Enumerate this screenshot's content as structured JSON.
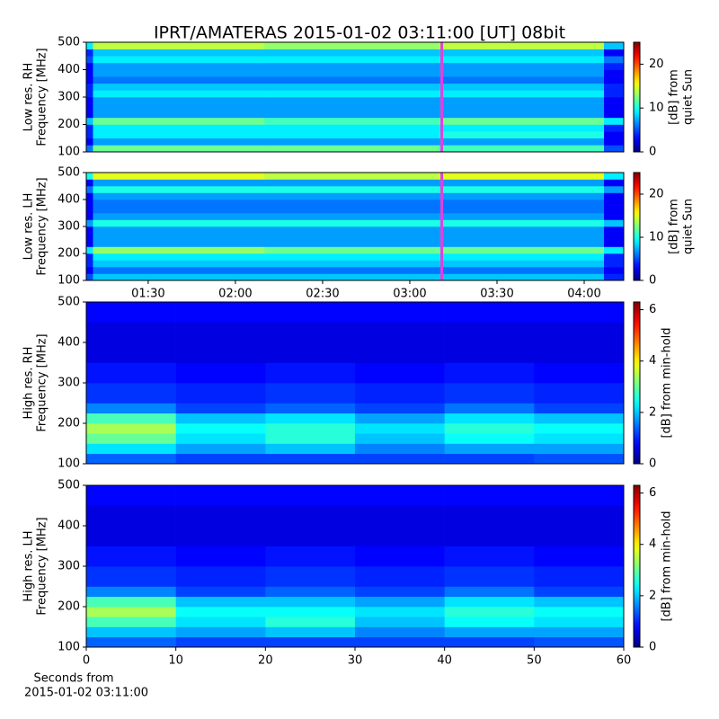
{
  "title": "IPRT/AMATERAS 2015-01-02 03:11:00 [UT]   08bit",
  "chart_data": [
    {
      "type": "heatmap",
      "colormap": "jet",
      "ylabel": [
        "Low res. RH",
        "Frequency [MHz]"
      ],
      "colorbar_label": [
        "[dB] from",
        "quiet Sun"
      ],
      "xlim": [
        68.7,
        253.6
      ],
      "ylim": [
        100,
        500
      ],
      "yticks": [
        100,
        200,
        300,
        400,
        500
      ],
      "zlim": [
        0,
        25
      ],
      "zticks": [
        0,
        10,
        20
      ],
      "x_bins": [
        68.7,
        71,
        130,
        190,
        246.8,
        253.6
      ],
      "y_bins": [
        100,
        125,
        150,
        175,
        200,
        225,
        250,
        275,
        300,
        325,
        350,
        375,
        400,
        425,
        450,
        475,
        500
      ],
      "z": [
        [
          6,
          12,
          12,
          11,
          5
        ],
        [
          3,
          7,
          7,
          7,
          3
        ],
        [
          4,
          9,
          9,
          10,
          3
        ],
        [
          4,
          9,
          9,
          9,
          4
        ],
        [
          8,
          12,
          11,
          12,
          9
        ],
        [
          3,
          7,
          7,
          7,
          3
        ],
        [
          3,
          7,
          7,
          7,
          3
        ],
        [
          3,
          7,
          7,
          7,
          3
        ],
        [
          4,
          9,
          9,
          9,
          4
        ],
        [
          4,
          8,
          8,
          8,
          4
        ],
        [
          3,
          6,
          6,
          6,
          3
        ],
        [
          3,
          7,
          7,
          7,
          3
        ],
        [
          3,
          7,
          7,
          7,
          4
        ],
        [
          5,
          9,
          9,
          9,
          6
        ],
        [
          4,
          8,
          8,
          8,
          3
        ],
        [
          9,
          14,
          13,
          14,
          8
        ]
      ],
      "vline": {
        "x": 191,
        "color": "#e040e0"
      }
    },
    {
      "type": "heatmap",
      "colormap": "jet",
      "ylabel": [
        "Low res. LH",
        "Frequency [MHz]"
      ],
      "colorbar_label": [
        "[dB] from",
        "quiet Sun"
      ],
      "xlim": [
        68.7,
        253.6
      ],
      "ylim": [
        100,
        500
      ],
      "yticks": [
        100,
        200,
        300,
        400,
        500
      ],
      "xticks": [
        {
          "value": 90,
          "label": "01:30"
        },
        {
          "value": 120,
          "label": "02:00"
        },
        {
          "value": 150,
          "label": "02:30"
        },
        {
          "value": 180,
          "label": "03:00"
        },
        {
          "value": 210,
          "label": "03:30"
        },
        {
          "value": 240,
          "label": "04:00"
        }
      ],
      "zlim": [
        0,
        25
      ],
      "zticks": [
        0,
        10,
        20
      ],
      "x_bins": [
        68.7,
        71,
        130,
        190,
        246.8,
        253.6
      ],
      "y_bins": [
        100,
        125,
        150,
        175,
        200,
        225,
        250,
        275,
        300,
        325,
        350,
        375,
        400,
        425,
        450,
        475,
        500
      ],
      "z": [
        [
          5,
          8,
          8,
          8,
          4
        ],
        [
          3,
          6,
          6,
          6,
          3
        ],
        [
          4,
          8,
          8,
          8,
          4
        ],
        [
          4,
          9,
          9,
          9,
          4
        ],
        [
          9,
          13,
          12,
          12,
          9
        ],
        [
          3,
          7,
          7,
          7,
          3
        ],
        [
          3,
          7,
          7,
          7,
          3
        ],
        [
          3,
          7,
          7,
          7,
          3
        ],
        [
          7,
          10,
          10,
          10,
          8
        ],
        [
          3,
          7,
          7,
          7,
          3
        ],
        [
          3,
          6,
          6,
          6,
          3
        ],
        [
          3,
          6,
          6,
          6,
          3
        ],
        [
          3,
          7,
          7,
          7,
          3
        ],
        [
          6,
          10,
          10,
          10,
          7
        ],
        [
          3,
          7,
          7,
          7,
          3
        ],
        [
          10,
          15,
          14,
          15,
          9
        ]
      ],
      "vline": {
        "x": 191,
        "color": "#e040e0"
      }
    },
    {
      "type": "heatmap",
      "colormap": "jet",
      "ylabel": [
        "High res. RH",
        "Frequency [MHz]"
      ],
      "colorbar_label": [
        "[dB] from min-hold"
      ],
      "xlim": [
        0,
        60
      ],
      "ylim": [
        100,
        500
      ],
      "yticks": [
        100,
        200,
        300,
        400,
        500
      ],
      "zlim": [
        0,
        6.3
      ],
      "zticks": [
        0,
        2,
        4,
        6
      ],
      "x_bins": [
        0,
        10,
        20,
        30,
        40,
        50,
        60
      ],
      "y_bins": [
        100,
        125,
        150,
        175,
        200,
        225,
        250,
        300,
        350,
        400,
        450,
        500
      ],
      "z": [
        [
          1.4,
          1.2,
          1.2,
          1.2,
          1.2,
          1.3
        ],
        [
          2.2,
          1.8,
          2.0,
          1.6,
          1.8,
          1.8
        ],
        [
          3.0,
          2.2,
          2.6,
          2.0,
          2.4,
          2.2
        ],
        [
          3.4,
          2.4,
          2.6,
          2.2,
          2.6,
          2.4
        ],
        [
          2.8,
          2.0,
          2.2,
          1.8,
          2.2,
          2.0
        ],
        [
          1.6,
          1.2,
          1.4,
          1.2,
          1.5,
          1.2
        ],
        [
          1.1,
          1.0,
          1.1,
          1.0,
          1.1,
          1.0
        ],
        [
          0.9,
          0.8,
          0.9,
          0.8,
          0.9,
          0.8
        ],
        [
          0.6,
          0.6,
          0.6,
          0.6,
          0.6,
          0.6
        ],
        [
          0.6,
          0.6,
          0.6,
          0.6,
          0.6,
          0.6
        ],
        [
          0.8,
          0.8,
          0.8,
          0.8,
          0.8,
          0.8
        ]
      ]
    },
    {
      "type": "heatmap",
      "colormap": "jet",
      "ylabel": [
        "High res. LH",
        "Frequency [MHz]"
      ],
      "colorbar_label": [
        "[dB] from min-hold"
      ],
      "xlabel": [
        "Seconds from",
        "2015-01-02 03:11:00"
      ],
      "xlim": [
        0,
        60
      ],
      "ylim": [
        100,
        500
      ],
      "yticks": [
        100,
        200,
        300,
        400,
        500
      ],
      "xticks": [
        0,
        10,
        20,
        30,
        40,
        50,
        60
      ],
      "zlim": [
        0,
        6.3
      ],
      "zticks": [
        0,
        2,
        4,
        6
      ],
      "x_bins": [
        0,
        10,
        20,
        30,
        40,
        50,
        60
      ],
      "y_bins": [
        100,
        125,
        150,
        175,
        200,
        225,
        250,
        300,
        350,
        400,
        450,
        500
      ],
      "z": [
        [
          1.4,
          1.2,
          1.2,
          1.2,
          1.2,
          1.3
        ],
        [
          2.0,
          1.8,
          2.0,
          1.6,
          1.8,
          1.8
        ],
        [
          2.8,
          2.2,
          2.6,
          2.0,
          2.4,
          2.2
        ],
        [
          3.4,
          2.4,
          2.4,
          2.2,
          2.6,
          2.4
        ],
        [
          2.8,
          2.0,
          2.0,
          1.8,
          2.2,
          2.0
        ],
        [
          1.6,
          1.2,
          1.4,
          1.2,
          1.5,
          1.2
        ],
        [
          1.1,
          1.0,
          1.1,
          1.0,
          1.1,
          1.0
        ],
        [
          0.9,
          0.8,
          0.9,
          0.8,
          0.9,
          0.8
        ],
        [
          0.6,
          0.6,
          0.6,
          0.6,
          0.6,
          0.6
        ],
        [
          0.6,
          0.6,
          0.6,
          0.6,
          0.6,
          0.6
        ],
        [
          0.8,
          0.8,
          0.8,
          0.8,
          0.8,
          0.8
        ]
      ]
    }
  ]
}
